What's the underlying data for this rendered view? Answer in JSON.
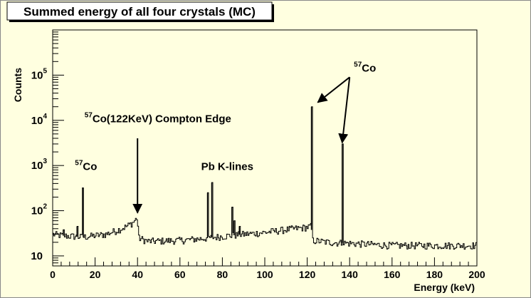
{
  "chart_data": {
    "type": "line",
    "title": "Summed energy of all four crystals (MC)",
    "xlabel": "Energy (keV)",
    "ylabel": "Counts",
    "xlim": [
      0,
      200
    ],
    "ylim": [
      6,
      1000000
    ],
    "y_scale": "log",
    "grid": false,
    "x_ticks": [
      0,
      20,
      40,
      60,
      80,
      100,
      120,
      140,
      160,
      180,
      200
    ],
    "x_tick_labels": [
      "0",
      "20",
      "40",
      "60",
      "80",
      "100",
      "120",
      "140",
      "160",
      "180",
      "200"
    ],
    "y_ticks": [
      10,
      100,
      1000,
      10000,
      100000
    ],
    "y_tick_labels": [
      {
        "base": "10",
        "exp": ""
      },
      {
        "base": "10",
        "exp": "2"
      },
      {
        "base": "10",
        "exp": "3"
      },
      {
        "base": "10",
        "exp": "4"
      },
      {
        "base": "10",
        "exp": "5"
      }
    ],
    "baseline": [
      [
        0,
        30
      ],
      [
        5,
        28
      ],
      [
        10,
        27
      ],
      [
        14,
        26
      ],
      [
        20,
        28
      ],
      [
        25,
        30
      ],
      [
        30,
        36
      ],
      [
        35,
        45
      ],
      [
        38,
        55
      ],
      [
        40,
        70
      ],
      [
        40.6,
        25
      ],
      [
        45,
        21
      ],
      [
        60,
        22
      ],
      [
        70,
        24
      ],
      [
        80,
        27
      ],
      [
        90,
        30
      ],
      [
        100,
        33
      ],
      [
        110,
        38
      ],
      [
        120,
        43
      ],
      [
        121.8,
        45
      ],
      [
        122.6,
        22
      ],
      [
        130,
        20
      ],
      [
        140,
        19
      ],
      [
        160,
        17
      ],
      [
        180,
        17
      ],
      [
        200,
        17
      ]
    ],
    "peaks": [
      {
        "x": 5,
        "y": 38
      },
      {
        "x": 11.5,
        "y": 45
      },
      {
        "x": 14.4,
        "y": 320
      },
      {
        "x": 73,
        "y": 250
      },
      {
        "x": 75,
        "y": 420
      },
      {
        "x": 84.5,
        "y": 120
      },
      {
        "x": 85.5,
        "y": 60
      },
      {
        "x": 88,
        "y": 45
      },
      {
        "x": 122,
        "y": 20000
      },
      {
        "x": 136.5,
        "y": 3000
      }
    ],
    "annotations": [
      {
        "id": "co57-low",
        "pre": "57",
        "main": "Co",
        "x": 10.5,
        "y": 800
      },
      {
        "id": "compton",
        "pre": "57",
        "main": "Co(122KeV) Compton Edge",
        "x": 15,
        "y": 9000
      },
      {
        "id": "pb",
        "pre": "",
        "main": "Pb K-lines",
        "x": 70,
        "y": 800
      },
      {
        "id": "co57-high",
        "pre": "57",
        "main": "Co",
        "x": 142,
        "y": 120000
      }
    ],
    "arrows": [
      {
        "from": [
          40,
          4000
        ],
        "to": [
          40,
          90
        ]
      },
      {
        "from": [
          140,
          90000
        ],
        "to": [
          125,
          25000
        ]
      },
      {
        "from": [
          140,
          90000
        ],
        "to": [
          136.5,
          3200
        ]
      }
    ]
  }
}
